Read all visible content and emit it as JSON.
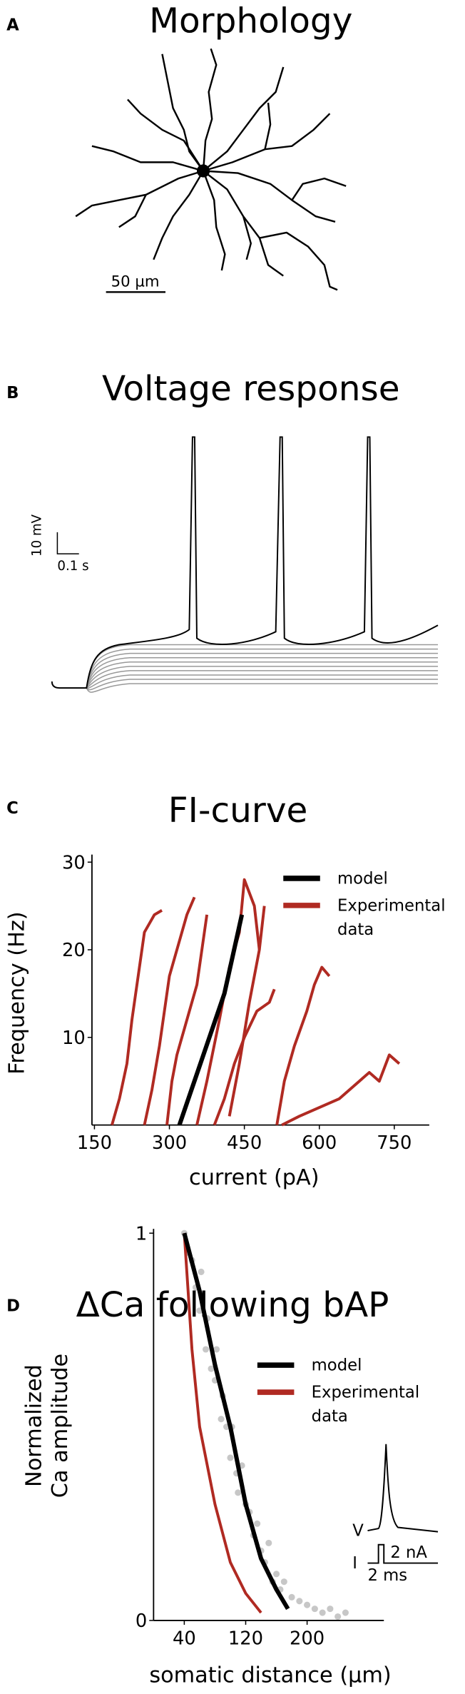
{
  "panels": {
    "A": {
      "label": "A",
      "title": "Morphology",
      "scale_bar": "50 µm"
    },
    "B": {
      "label": "B",
      "title": "Voltage response",
      "scale_v": "10 mV",
      "scale_t": "0.1 s"
    },
    "C": {
      "label": "C",
      "title": "FI-curve"
    },
    "D": {
      "label": "D",
      "title": "ΔCa following bAP",
      "inset": {
        "v": "V",
        "i": "I",
        "amp": "2 nA",
        "time": "2 ms"
      }
    }
  },
  "chart_data": [
    {
      "type": "line",
      "xlabel": "current (pA)",
      "ylabel": "Frequency (Hz)",
      "xlim": [
        145,
        820
      ],
      "ylim": [
        0,
        30
      ],
      "xticks": [
        150,
        300,
        450,
        600,
        750
      ],
      "yticks": [
        10,
        20,
        30
      ],
      "series": [
        {
          "name": "model",
          "color": "#000000",
          "x": [
            320,
            350,
            380,
            410,
            445
          ],
          "values": [
            0,
            5,
            10,
            15,
            24
          ]
        },
        {
          "name": "Experimental data",
          "color": "#b02a22",
          "curves": [
            {
              "x": [
                185,
                200,
                215,
                225,
                240,
                250,
                260,
                270,
                285
              ],
              "values": [
                0,
                3,
                7,
                12,
                18,
                22,
                23,
                24,
                24.5
              ]
            },
            {
              "x": [
                250,
                265,
                280,
                290,
                300,
                310,
                320,
                335,
                350
              ],
              "values": [
                0,
                4,
                9,
                13,
                17,
                19,
                21,
                24,
                26
              ]
            },
            {
              "x": [
                295,
                305,
                315,
                330,
                340,
                355,
                365,
                375
              ],
              "values": [
                0,
                5,
                8,
                11,
                13,
                16,
                20,
                24
              ]
            },
            {
              "x": [
                355,
                375,
                400,
                420,
                440,
                450,
                470,
                480
              ],
              "values": [
                0,
                5,
                12,
                18,
                22,
                28,
                25,
                20
              ]
            },
            {
              "x": [
                390,
                410,
                430,
                450,
                475,
                500,
                510
              ],
              "values": [
                0,
                3,
                7,
                10,
                13,
                14,
                15.5
              ]
            },
            {
              "x": [
                420,
                440,
                460,
                480,
                490
              ],
              "values": [
                1,
                7,
                14,
                20,
                25
              ]
            },
            {
              "x": [
                515,
                530,
                550,
                575,
                590,
                605,
                620
              ],
              "values": [
                0,
                5,
                9,
                13,
                16,
                18,
                17
              ]
            },
            {
              "x": [
                525,
                560,
                600,
                640,
                680,
                700,
                720,
                740,
                760
              ],
              "values": [
                0,
                1,
                2,
                3,
                5,
                6,
                5,
                8,
                7
              ]
            }
          ]
        }
      ]
    },
    {
      "type": "line",
      "xlabel": "somatic distance (µm)",
      "ylabel": [
        "Normalized",
        "Ca amplitude"
      ],
      "xlim": [
        0,
        300
      ],
      "ylim": [
        0,
        1
      ],
      "xticks": [
        40,
        120,
        200
      ],
      "yticks": [
        0,
        1
      ],
      "series": [
        {
          "name": "model",
          "color": "#000000",
          "x": [
            40,
            60,
            80,
            100,
            120,
            140,
            160,
            175
          ],
          "values": [
            1,
            0.85,
            0.66,
            0.5,
            0.3,
            0.16,
            0.08,
            0.03
          ]
        },
        {
          "name": "Experimental data",
          "color": "#b02a22",
          "x": [
            40,
            50,
            60,
            70,
            80,
            100,
            120,
            140
          ],
          "values": [
            1,
            0.7,
            0.5,
            0.4,
            0.3,
            0.15,
            0.07,
            0.02
          ]
        }
      ],
      "points": {
        "color": "#444444",
        "x": [
          40,
          45,
          50,
          55,
          60,
          62,
          68,
          70,
          75,
          80,
          82,
          88,
          90,
          95,
          100,
          102,
          108,
          110,
          115,
          120,
          125,
          130,
          135,
          140,
          145,
          150,
          155,
          160,
          165,
          170,
          180,
          190,
          200,
          210,
          220,
          230,
          240,
          250
        ],
        "values": [
          1,
          0.95,
          0.93,
          0.86,
          0.8,
          0.9,
          0.7,
          0.78,
          0.65,
          0.62,
          0.7,
          0.52,
          0.58,
          0.5,
          0.42,
          0.5,
          0.38,
          0.33,
          0.4,
          0.3,
          0.28,
          0.22,
          0.25,
          0.18,
          0.15,
          0.2,
          0.1,
          0.12,
          0.08,
          0.1,
          0.06,
          0.05,
          0.04,
          0.03,
          0.02,
          0.03,
          0.01,
          0.02
        ]
      }
    }
  ]
}
